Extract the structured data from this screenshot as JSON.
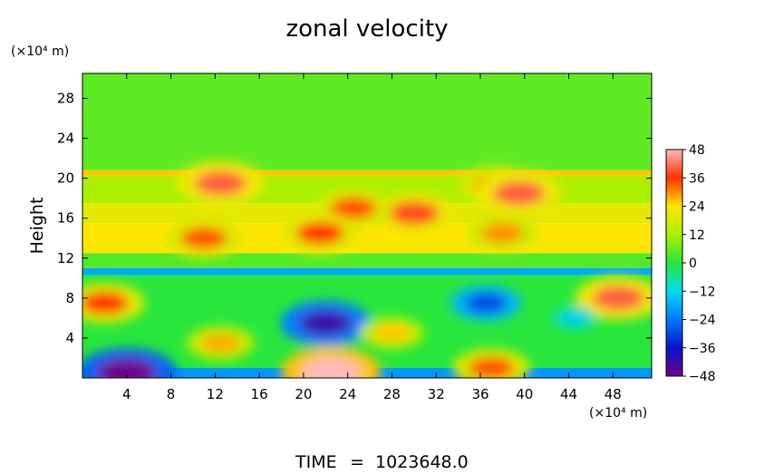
{
  "chart_data": {
    "type": "heatmap",
    "title": "zonal velocity",
    "ylabel": "Height",
    "xunit": "(×10⁴ m)",
    "yunit": "(×10⁴ m)",
    "x_ticks": [
      "4",
      "8",
      "12",
      "16",
      "20",
      "24",
      "28",
      "32",
      "36",
      "40",
      "44",
      "48"
    ],
    "y_ticks": [
      "4",
      "8",
      "12",
      "16",
      "20",
      "24",
      "28"
    ],
    "xlim": [
      0,
      51.5
    ],
    "ylim": [
      0,
      30.5
    ],
    "colorbar": {
      "ticks": [
        "48",
        "36",
        "24",
        "12",
        "0",
        "-12",
        "-24",
        "-36",
        "-48"
      ],
      "range": [
        -48,
        48
      ]
    },
    "bands": [
      {
        "y_range": [
          20.8,
          30.5
        ],
        "value": 5
      },
      {
        "y_range": [
          20.2,
          20.8
        ],
        "value": 26
      },
      {
        "y_range": [
          17.5,
          20.2
        ],
        "value": 12
      },
      {
        "y_range": [
          15.5,
          17.5
        ],
        "value": 20
      },
      {
        "y_range": [
          12.5,
          15.5
        ],
        "value": 24
      },
      {
        "y_range": [
          11,
          12.5
        ],
        "value": 4
      },
      {
        "y_range": [
          10.3,
          11
        ],
        "value": -18
      },
      {
        "y_range": [
          1,
          10.3
        ],
        "value": 0
      },
      {
        "y_range": [
          0,
          1
        ],
        "value": -20
      }
    ],
    "features": [
      {
        "x": 12.5,
        "y": 19.5,
        "value": 40
      },
      {
        "x": 37.5,
        "y": 19.2,
        "value": 34
      },
      {
        "x": 39.5,
        "y": 18.5,
        "value": 40
      },
      {
        "x": 30,
        "y": 16.5,
        "value": 38
      },
      {
        "x": 24.5,
        "y": 17,
        "value": 34
      },
      {
        "x": 21.5,
        "y": 14.5,
        "value": 36
      },
      {
        "x": 11,
        "y": 14,
        "value": 34
      },
      {
        "x": 38,
        "y": 14.5,
        "value": 30
      },
      {
        "x": 2,
        "y": 7.5,
        "value": 36
      },
      {
        "x": 48.5,
        "y": 8,
        "value": 40
      },
      {
        "x": 22,
        "y": 5.5,
        "value": -42
      },
      {
        "x": 36.5,
        "y": 7.5,
        "value": -30
      },
      {
        "x": 28,
        "y": 4.5,
        "value": 26
      },
      {
        "x": 12.5,
        "y": 3.5,
        "value": 28
      },
      {
        "x": 4,
        "y": 0.5,
        "value": -48
      },
      {
        "x": 22.5,
        "y": 0.6,
        "value": 48
      },
      {
        "x": 37,
        "y": 1,
        "value": 34
      },
      {
        "x": 44.5,
        "y": 6,
        "value": -14
      }
    ]
  },
  "footer": {
    "time_label": "TIME",
    "equals": "=",
    "time_value": "1023648.0"
  }
}
